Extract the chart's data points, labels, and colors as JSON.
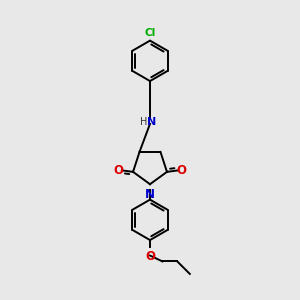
{
  "background_color": "#e8e8e8",
  "bond_color": "#000000",
  "N_color": "#0000cc",
  "O_color": "#dd0000",
  "Cl_color": "#00aa00",
  "figsize": [
    3.0,
    3.0
  ],
  "dpi": 100,
  "xlim": [
    0,
    10
  ],
  "ylim": [
    0,
    10
  ],
  "ring_r": 0.68,
  "lw": 1.4,
  "fontsize": 7.5
}
